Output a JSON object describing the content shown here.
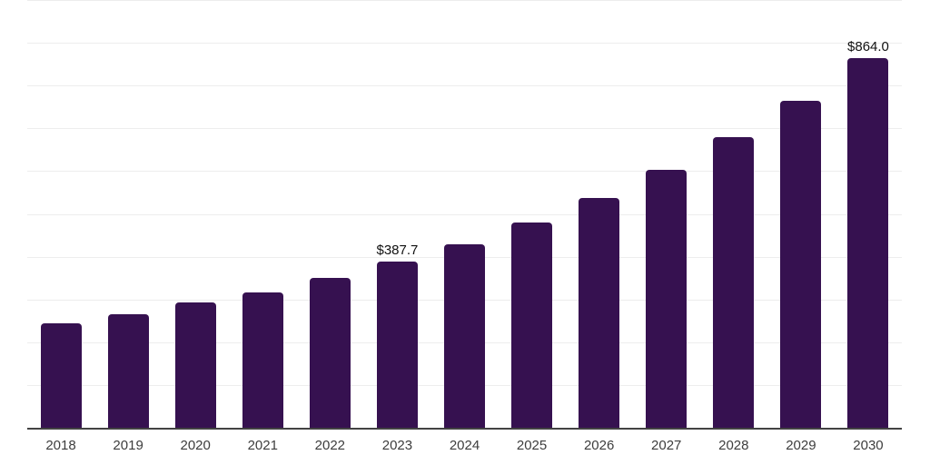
{
  "chart": {
    "bar_color": "#361150",
    "axis_color": "#434343",
    "gridline_color": "#ededed",
    "tick_label_color": "#3d3d3d",
    "value_label_color": "#111111",
    "background_color": "#ffffff"
  },
  "chart_data": {
    "type": "bar",
    "title": "",
    "xlabel": "",
    "ylabel": "",
    "categories": [
      "2018",
      "2019",
      "2020",
      "2021",
      "2022",
      "2023",
      "2024",
      "2025",
      "2026",
      "2027",
      "2028",
      "2029",
      "2030"
    ],
    "values": [
      245,
      266,
      292,
      317,
      351,
      387.7,
      429,
      480,
      537,
      604,
      679,
      765,
      864
    ],
    "data_labels": [
      "",
      "",
      "",
      "",
      "",
      "$387.7",
      "",
      "",
      "",
      "",
      "",
      "",
      "$864.0"
    ],
    "ylim": [
      0,
      1000
    ],
    "grid_step": 100,
    "grid": "on",
    "y_tick_labels_visible": false,
    "legend": "none",
    "series_name": "",
    "value_prefix": "$"
  }
}
